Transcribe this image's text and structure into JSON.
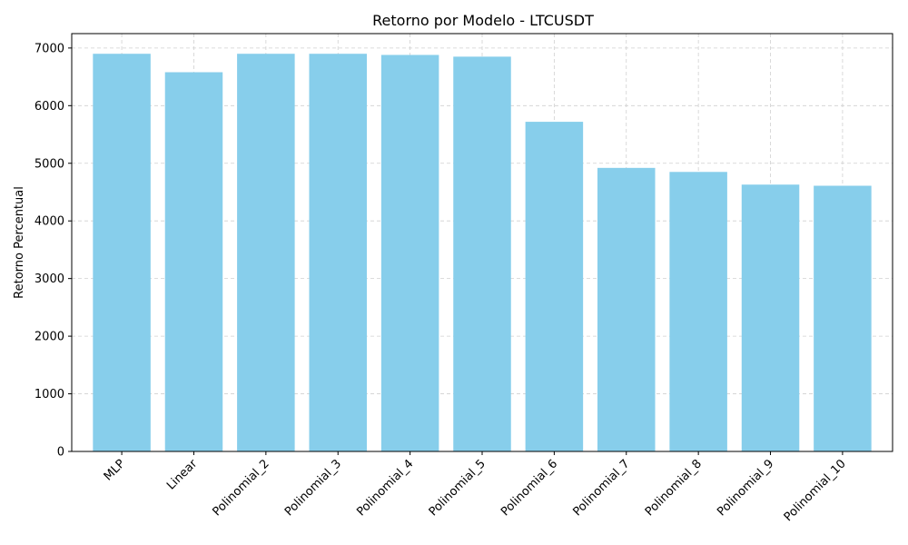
{
  "chart_data": {
    "type": "bar",
    "title": "Retorno por Modelo - LTCUSDT",
    "xlabel": "",
    "ylabel": "Retorno Percentual",
    "categories": [
      "MLP",
      "Linear",
      "Polinomial_2",
      "Polinomial_3",
      "Polinomial_4",
      "Polinomial_5",
      "Polinomial_6",
      "Polinomial_7",
      "Polinomial_8",
      "Polinomial_9",
      "Polinomial_10"
    ],
    "values": [
      6900,
      6580,
      6900,
      6900,
      6880,
      6850,
      5720,
      4920,
      4850,
      4630,
      4610
    ],
    "ylim": [
      0,
      7250
    ],
    "yticks": [
      0,
      1000,
      2000,
      3000,
      4000,
      5000,
      6000,
      7000
    ],
    "grid": true,
    "bar_color": "#87ceeb"
  }
}
